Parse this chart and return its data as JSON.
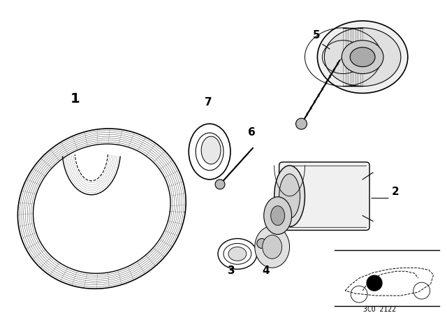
{
  "background_color": "#ffffff",
  "line_color": "#000000",
  "diagram_code": "3CO 2122",
  "fig_width": 6.4,
  "fig_height": 4.48,
  "dpi": 100
}
